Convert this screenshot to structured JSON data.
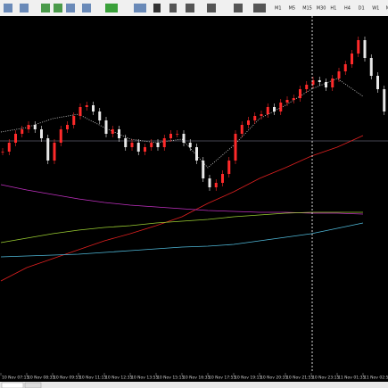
{
  "toolbar": {
    "timeframes": [
      "M1",
      "M5",
      "M15",
      "M30",
      "H1",
      "H4",
      "D1",
      "W1",
      "MN"
    ]
  },
  "chart_data": {
    "type": "candlestick",
    "categories": [
      "10 Nov 07:15",
      "10 Nov 08:35",
      "10 Nov 09:55",
      "10 Nov 11:15",
      "10 Nov 12:35",
      "10 Nov 13:55",
      "10 Nov 15:15",
      "10 Nov 16:35",
      "10 Nov 17:55",
      "10 Nov 19:15",
      "10 Nov 20:35",
      "10 Nov 21:55",
      "10 Nov 23:15",
      "11 Nov 01:35",
      "11 Nov 02:55"
    ],
    "ylim": [
      0,
      400
    ],
    "up_color": "#ff2a2a",
    "down_color": "#e8e8e8",
    "closes": [
      248,
      258,
      268,
      273,
      278,
      273,
      263,
      238,
      258,
      273,
      278,
      288,
      298,
      300,
      293,
      283,
      268,
      273,
      263,
      253,
      258,
      248,
      253,
      258,
      253,
      263,
      268,
      268,
      258,
      253,
      238,
      218,
      208,
      213,
      223,
      238,
      268,
      278,
      283,
      288,
      290,
      298,
      293,
      303,
      306,
      308,
      318,
      323,
      328,
      326,
      320,
      330,
      338,
      346,
      358,
      373,
      353,
      333,
      318,
      293,
      288,
      300
    ],
    "series": [
      {
        "name": "MA red",
        "color": "#e02020",
        "values": [
          103,
          118,
          128,
          138,
          148,
          156,
          165,
          175,
          190,
          203,
          218,
          230,
          243,
          253,
          266
        ]
      },
      {
        "name": "MA magenta",
        "color": "#c030c0",
        "values": [
          211,
          205,
          200,
          195,
          191,
          188,
          186,
          184,
          182,
          181,
          180,
          180,
          179,
          179,
          178
        ]
      },
      {
        "name": "MA yellow-green",
        "color": "#9acd32",
        "values": [
          146,
          151,
          156,
          160,
          163,
          165,
          168,
          170,
          172,
          175,
          177,
          179,
          180,
          180,
          180
        ]
      },
      {
        "name": "MA cyan",
        "color": "#4fb8d8",
        "values": [
          130,
          131,
          132,
          133,
          135,
          137,
          139,
          141,
          142,
          144,
          148,
          152,
          156,
          162,
          168
        ]
      },
      {
        "name": "MA dotted",
        "color": "#d8d8d8",
        "dotted": true,
        "values": [
          270,
          275,
          285,
          290,
          275,
          262,
          258,
          262,
          230,
          255,
          285,
          300,
          318,
          330,
          310
        ]
      }
    ],
    "crosshair": 260
  }
}
